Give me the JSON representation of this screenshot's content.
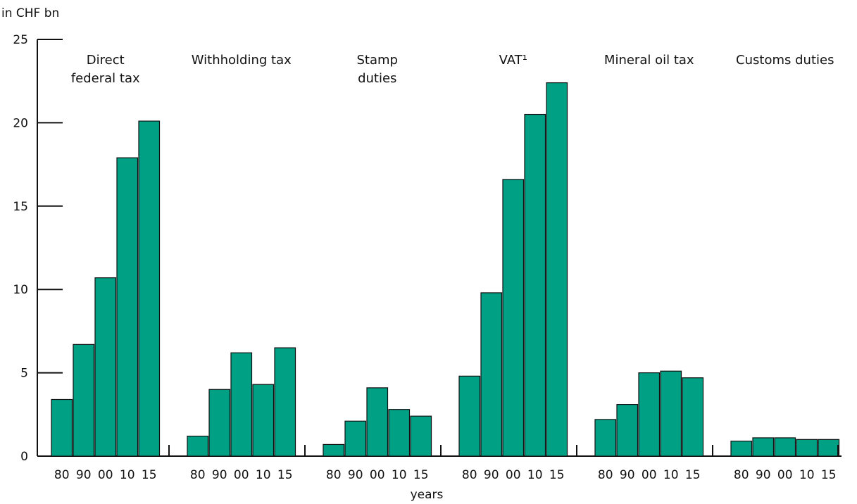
{
  "chart_data": {
    "type": "bar",
    "title": "",
    "ylabel": "in CHF bn",
    "xlabel": "years",
    "ylim": [
      0,
      25
    ],
    "yticks": [
      0,
      5,
      10,
      15,
      20,
      25
    ],
    "categories": [
      "80",
      "90",
      "00",
      "10",
      "15"
    ],
    "bar_color": "#00A085",
    "groups": [
      {
        "label_lines": [
          "Direct",
          "federal tax"
        ],
        "values": [
          3.4,
          6.7,
          10.7,
          17.9,
          20.1
        ]
      },
      {
        "label_lines": [
          "Withholding tax"
        ],
        "values": [
          1.2,
          4.0,
          6.2,
          4.3,
          6.5
        ]
      },
      {
        "label_lines": [
          "Stamp",
          "duties"
        ],
        "values": [
          0.7,
          2.1,
          4.1,
          2.8,
          2.4
        ]
      },
      {
        "label_lines": [
          "VAT¹"
        ],
        "values": [
          4.8,
          9.8,
          16.6,
          20.5,
          22.4
        ]
      },
      {
        "label_lines": [
          "Mineral oil tax"
        ],
        "values": [
          2.2,
          3.1,
          5.0,
          5.1,
          4.7
        ]
      },
      {
        "label_lines": [
          "Customs duties"
        ],
        "values": [
          0.9,
          1.1,
          1.1,
          1.0,
          1.0
        ]
      }
    ]
  }
}
